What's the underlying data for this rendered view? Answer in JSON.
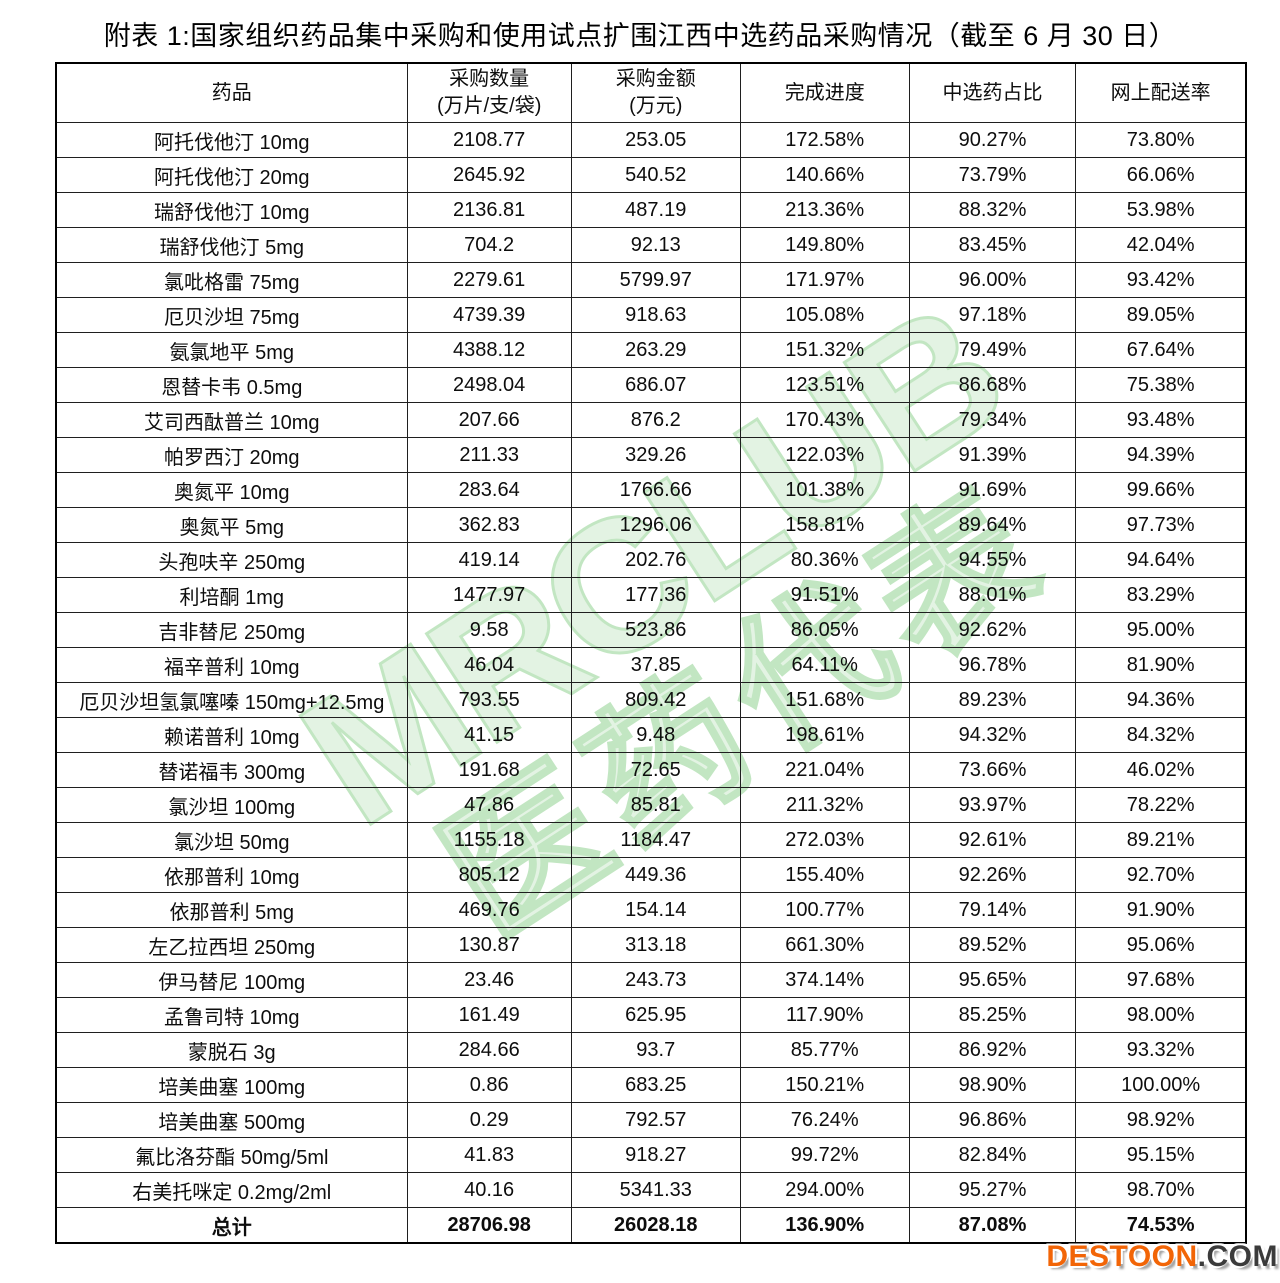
{
  "title": "附表 1:国家组织药品集中采购和使用试点扩围江西中选药品采购情况（截至 6 月 30 日）",
  "watermark": {
    "line1": "MRCLUB",
    "line2": "医药代表"
  },
  "logo": {
    "main": "DESTOON",
    "suffix": ".COM",
    "orange": "#f26507",
    "dark": "#3b3b3b"
  },
  "table": {
    "columns": [
      {
        "label": "药品",
        "sub": ""
      },
      {
        "label": "采购数量",
        "sub": "(万片/支/袋)"
      },
      {
        "label": "采购金额",
        "sub": "(万元)"
      },
      {
        "label": "完成进度",
        "sub": ""
      },
      {
        "label": "中选药占比",
        "sub": ""
      },
      {
        "label": "网上配送率",
        "sub": ""
      }
    ],
    "rows": [
      [
        "阿托伐他汀 10mg",
        "2108.77",
        "253.05",
        "172.58%",
        "90.27%",
        "73.80%"
      ],
      [
        "阿托伐他汀 20mg",
        "2645.92",
        "540.52",
        "140.66%",
        "73.79%",
        "66.06%"
      ],
      [
        "瑞舒伐他汀 10mg",
        "2136.81",
        "487.19",
        "213.36%",
        "88.32%",
        "53.98%"
      ],
      [
        "瑞舒伐他汀 5mg",
        "704.2",
        "92.13",
        "149.80%",
        "83.45%",
        "42.04%"
      ],
      [
        "氯吡格雷 75mg",
        "2279.61",
        "5799.97",
        "171.97%",
        "96.00%",
        "93.42%"
      ],
      [
        "厄贝沙坦 75mg",
        "4739.39",
        "918.63",
        "105.08%",
        "97.18%",
        "89.05%"
      ],
      [
        "氨氯地平 5mg",
        "4388.12",
        "263.29",
        "151.32%",
        "79.49%",
        "67.64%"
      ],
      [
        "恩替卡韦 0.5mg",
        "2498.04",
        "686.07",
        "123.51%",
        "86.68%",
        "75.38%"
      ],
      [
        "艾司西酞普兰 10mg",
        "207.66",
        "876.2",
        "170.43%",
        "79.34%",
        "93.48%"
      ],
      [
        "帕罗西汀 20mg",
        "211.33",
        "329.26",
        "122.03%",
        "91.39%",
        "94.39%"
      ],
      [
        "奥氮平 10mg",
        "283.64",
        "1766.66",
        "101.38%",
        "91.69%",
        "99.66%"
      ],
      [
        "奥氮平 5mg",
        "362.83",
        "1296.06",
        "158.81%",
        "89.64%",
        "97.73%"
      ],
      [
        "头孢呋辛 250mg",
        "419.14",
        "202.76",
        "80.36%",
        "94.55%",
        "94.64%"
      ],
      [
        "利培酮 1mg",
        "1477.97",
        "177.36",
        "91.51%",
        "88.01%",
        "83.29%"
      ],
      [
        "吉非替尼 250mg",
        "9.58",
        "523.86",
        "86.05%",
        "92.62%",
        "95.00%"
      ],
      [
        "福辛普利 10mg",
        "46.04",
        "37.85",
        "64.11%",
        "96.78%",
        "81.90%"
      ],
      [
        "厄贝沙坦氢氯噻嗪 150mg+12.5mg",
        "793.55",
        "809.42",
        "151.68%",
        "89.23%",
        "94.36%"
      ],
      [
        "赖诺普利 10mg",
        "41.15",
        "9.48",
        "198.61%",
        "94.32%",
        "84.32%"
      ],
      [
        "替诺福韦 300mg",
        "191.68",
        "72.65",
        "221.04%",
        "73.66%",
        "46.02%"
      ],
      [
        "氯沙坦 100mg",
        "47.86",
        "85.81",
        "211.32%",
        "93.97%",
        "78.22%"
      ],
      [
        "氯沙坦 50mg",
        "1155.18",
        "1184.47",
        "272.03%",
        "92.61%",
        "89.21%"
      ],
      [
        "依那普利 10mg",
        "805.12",
        "449.36",
        "155.40%",
        "92.26%",
        "92.70%"
      ],
      [
        "依那普利 5mg",
        "469.76",
        "154.14",
        "100.77%",
        "79.14%",
        "91.90%"
      ],
      [
        "左乙拉西坦 250mg",
        "130.87",
        "313.18",
        "661.30%",
        "89.52%",
        "95.06%"
      ],
      [
        "伊马替尼 100mg",
        "23.46",
        "243.73",
        "374.14%",
        "95.65%",
        "97.68%"
      ],
      [
        "孟鲁司特 10mg",
        "161.49",
        "625.95",
        "117.90%",
        "85.25%",
        "98.00%"
      ],
      [
        "蒙脱石 3g",
        "284.66",
        "93.7",
        "85.77%",
        "86.92%",
        "93.32%"
      ],
      [
        "培美曲塞 100mg",
        "0.86",
        "683.25",
        "150.21%",
        "98.90%",
        "100.00%"
      ],
      [
        "培美曲塞 500mg",
        "0.29",
        "792.57",
        "76.24%",
        "96.86%",
        "98.92%"
      ],
      [
        "氟比洛芬酯 50mg/5ml",
        "41.83",
        "918.27",
        "99.72%",
        "82.84%",
        "95.15%"
      ],
      [
        "右美托咪定 0.2mg/2ml",
        "40.16",
        "5341.33",
        "294.00%",
        "95.27%",
        "98.70%"
      ]
    ],
    "total_row": [
      "总计",
      "28706.98",
      "26028.18",
      "136.90%",
      "87.08%",
      "74.53%"
    ]
  }
}
